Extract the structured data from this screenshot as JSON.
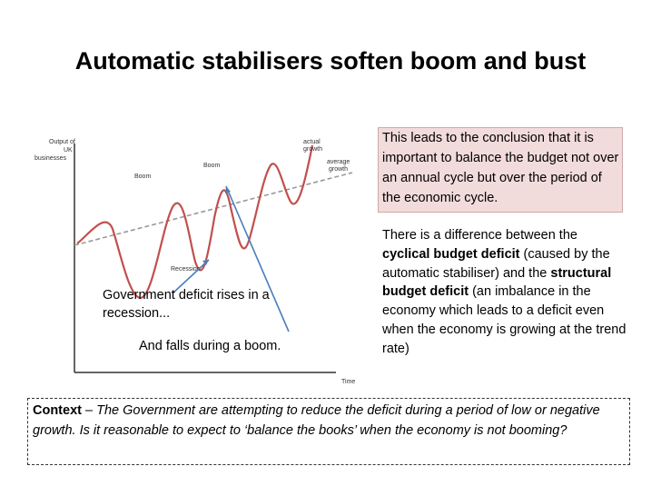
{
  "title": "Automatic stabilisers soften boom and bust",
  "diagram": {
    "y_axis_label": [
      "Output of",
      "UK",
      "businesses"
    ],
    "x_axis_label": "Time",
    "curve_labels": {
      "boom_1": "Boom",
      "boom_2": "Boom",
      "recession": "Recession",
      "actual_growth": [
        "actual",
        "growth"
      ],
      "average_growth": [
        "average",
        "growth"
      ]
    },
    "annotations": {
      "rise": [
        "Government deficit rises in a",
        "recession..."
      ],
      "fall": "And falls during a boom."
    },
    "colors": {
      "curve": "#c0504d",
      "trend": "#999999",
      "arrow": "#4a7ebb"
    }
  },
  "conclusion": "This leads to the conclusion that it is important to balance the budget not over an annual cycle but over the period of the economic cycle.",
  "difference": {
    "part1": "There is a difference between the ",
    "term1": "cyclical budget deficit",
    "part2": " (caused by the automatic stabiliser) and the ",
    "term2": "structural budget deficit",
    "part3": " (an imbalance in the economy which leads to a deficit even when the economy is growing at the trend rate)"
  },
  "context": {
    "label": "Context",
    "dash": " – ",
    "text": "The Government are attempting to reduce the deficit during a period of low or negative growth.  Is it reasonable to expect to ‘balance the books’ when the economy is not booming?"
  },
  "highlight_color": "#f2dcdb"
}
